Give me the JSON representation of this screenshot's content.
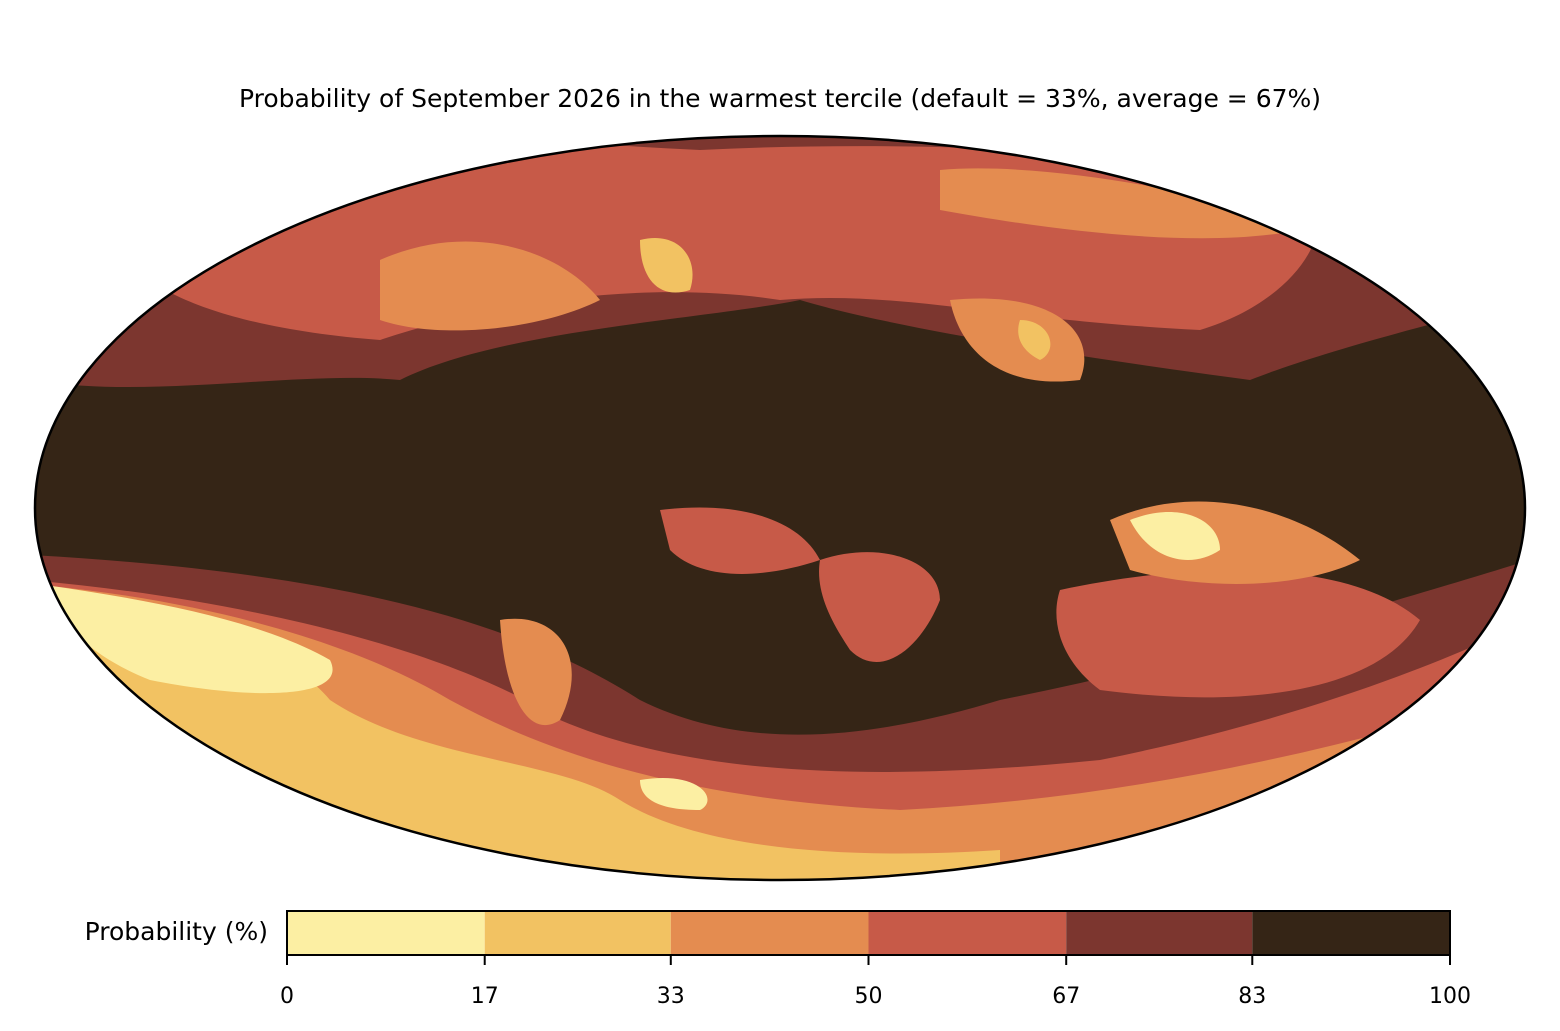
{
  "chart_data": {
    "type": "map",
    "title": "Probability of September 2026 in the warmest tercile (default = 33%, average = 67%)",
    "colorbar": {
      "label": "Probability (%)",
      "bins": [
        0,
        17,
        33,
        50,
        67,
        83,
        100
      ],
      "colors": [
        "#fcefa3",
        "#f2c262",
        "#e48c50",
        "#c75a48",
        "#7c362f",
        "#352516"
      ],
      "xlim": [
        0,
        100
      ],
      "xticks": [
        0,
        17,
        33,
        50,
        67,
        83,
        100
      ]
    }
  }
}
